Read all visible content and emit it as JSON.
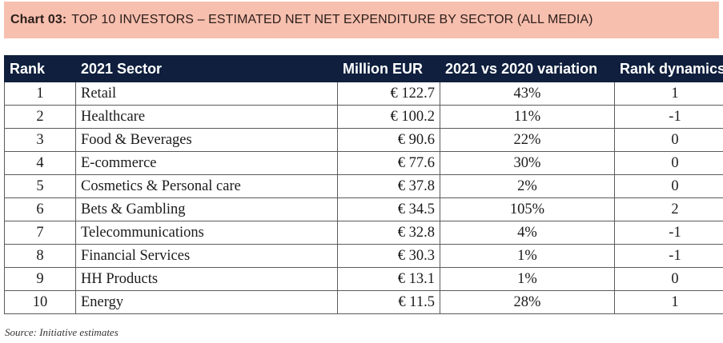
{
  "title": {
    "prefix": "Chart 03:",
    "text": "TOP 10 INVESTORS – ESTIMATED NET NET EXPENDITURE BY SECTOR (ALL MEDIA)"
  },
  "colors": {
    "title_background": "#f7bfae",
    "header_background": "#0f1f3d",
    "header_text": "#ffffff"
  },
  "table": {
    "headers": [
      "Rank",
      "2021 Sector",
      "Million EUR",
      "2021 vs 2020 variation",
      "Rank dynamics"
    ],
    "rows": [
      {
        "rank": "1",
        "sector": "Retail",
        "eur": "€ 122.7",
        "variation": "43%",
        "dynamics": "1"
      },
      {
        "rank": "2",
        "sector": "Healthcare",
        "eur": "€ 100.2",
        "variation": "11%",
        "dynamics": "-1"
      },
      {
        "rank": "3",
        "sector": "Food & Beverages",
        "eur": "€ 90.6",
        "variation": "22%",
        "dynamics": "0"
      },
      {
        "rank": "4",
        "sector": "E-commerce",
        "eur": "€ 77.6",
        "variation": "30%",
        "dynamics": "0"
      },
      {
        "rank": "5",
        "sector": "Cosmetics & Personal care",
        "eur": "€ 37.8",
        "variation": "2%",
        "dynamics": "0"
      },
      {
        "rank": "6",
        "sector": "Bets & Gambling",
        "eur": "€ 34.5",
        "variation": "105%",
        "dynamics": "2"
      },
      {
        "rank": "7",
        "sector": "Telecommunications",
        "eur": "€ 32.8",
        "variation": "4%",
        "dynamics": "-1"
      },
      {
        "rank": "8",
        "sector": "Financial Services",
        "eur": "€ 30.3",
        "variation": "1%",
        "dynamics": "-1"
      },
      {
        "rank": "9",
        "sector": "HH Products",
        "eur": "€ 13.1",
        "variation": "1%",
        "dynamics": "0"
      },
      {
        "rank": "10",
        "sector": "Energy",
        "eur": "€ 11.5",
        "variation": "28%",
        "dynamics": "1"
      }
    ]
  },
  "source": "Source: Initiative estimates"
}
